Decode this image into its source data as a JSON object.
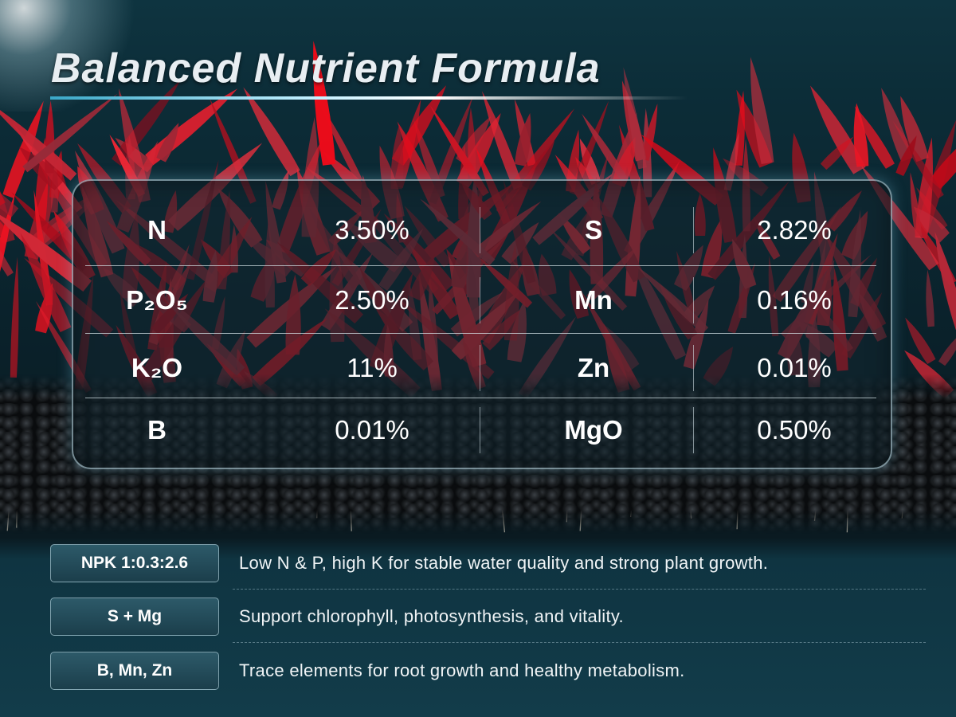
{
  "title": "Balanced Nutrient Formula",
  "table": {
    "rows": [
      [
        "N",
        "3.50%",
        "S",
        "2.82%"
      ],
      [
        "P₂O₅",
        "2.50%",
        "Mn",
        "0.16%"
      ],
      [
        "K₂O",
        "11%",
        "Zn",
        "0.01%"
      ],
      [
        "B",
        "0.01%",
        "MgO",
        "0.50%"
      ]
    ]
  },
  "features": [
    {
      "tag": "NPK 1:0.3:2.6",
      "text": "Low N & P, high K for stable water quality and strong plant growth."
    },
    {
      "tag": "S + Mg",
      "text": "Support chlorophyll, photosynthesis, and vitality."
    },
    {
      "tag": "B, Mn, Zn",
      "text": "Trace elements for root growth and healthy metabolism."
    }
  ]
}
